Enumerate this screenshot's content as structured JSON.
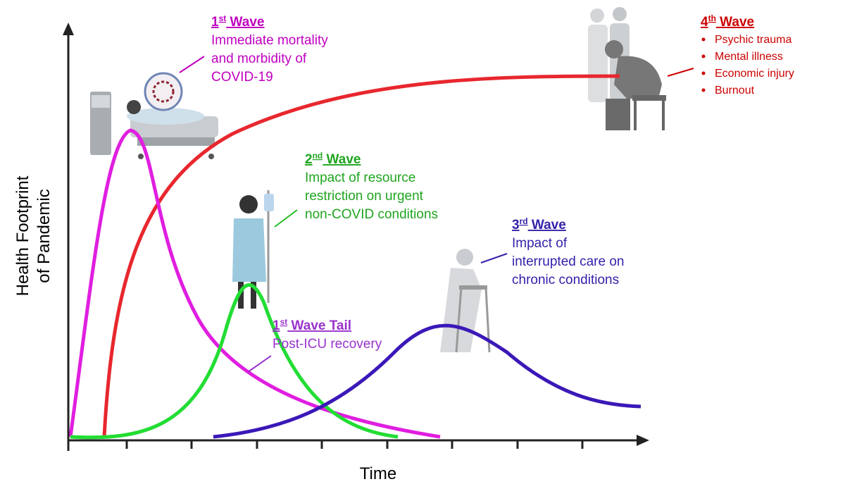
{
  "y_axis_label": [
    "Health Footprint",
    "of Pandemic"
  ],
  "x_axis_label": "Time",
  "waves": [
    {
      "title": {
        "ordinal": "1",
        "suffix": "st",
        "name": "Wave"
      },
      "lines": [
        "Immediate mortality",
        "and morbidity of",
        "COVID-19"
      ]
    },
    {
      "title": {
        "ordinal": "2",
        "suffix": "nd",
        "name": "Wave"
      },
      "lines": [
        "Impact of resource",
        "restriction on urgent",
        "non-COVID conditions"
      ]
    },
    {
      "title": {
        "ordinal": "3",
        "suffix": "rd",
        "name": "Wave"
      },
      "lines": [
        "Impact of",
        "interrupted care on",
        "chronic conditions"
      ]
    },
    {
      "title": {
        "ordinal": "4",
        "suffix": "th",
        "name": "Wave"
      },
      "bullets": [
        "Psychic trauma",
        "Mental illness",
        "Economic injury",
        "Burnout"
      ]
    },
    {
      "title": {
        "ordinal": "1",
        "suffix": "st",
        "name": "Wave Tail"
      },
      "lines": [
        "Post-ICU recovery"
      ]
    }
  ]
}
